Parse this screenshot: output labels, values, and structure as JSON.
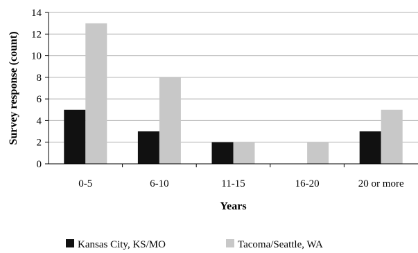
{
  "chart_data": {
    "type": "bar",
    "categories": [
      "0-5",
      "6-10",
      "11-15",
      "16-20",
      "20 or more"
    ],
    "series": [
      {
        "name": "Kansas City, KS/MO",
        "values": [
          5,
          3,
          2,
          0,
          3
        ],
        "color": "#111111"
      },
      {
        "name": "Tacoma/Seattle, WA",
        "values": [
          13,
          8,
          2,
          2,
          5
        ],
        "color": "#c8c8c8"
      }
    ],
    "title": "",
    "xlabel": "Years",
    "ylabel": "Survey response (count)",
    "ylim": [
      0,
      14
    ],
    "yticks": [
      0,
      2,
      4,
      6,
      8,
      10,
      12,
      14
    ],
    "grid": true,
    "legend": "bottom"
  }
}
